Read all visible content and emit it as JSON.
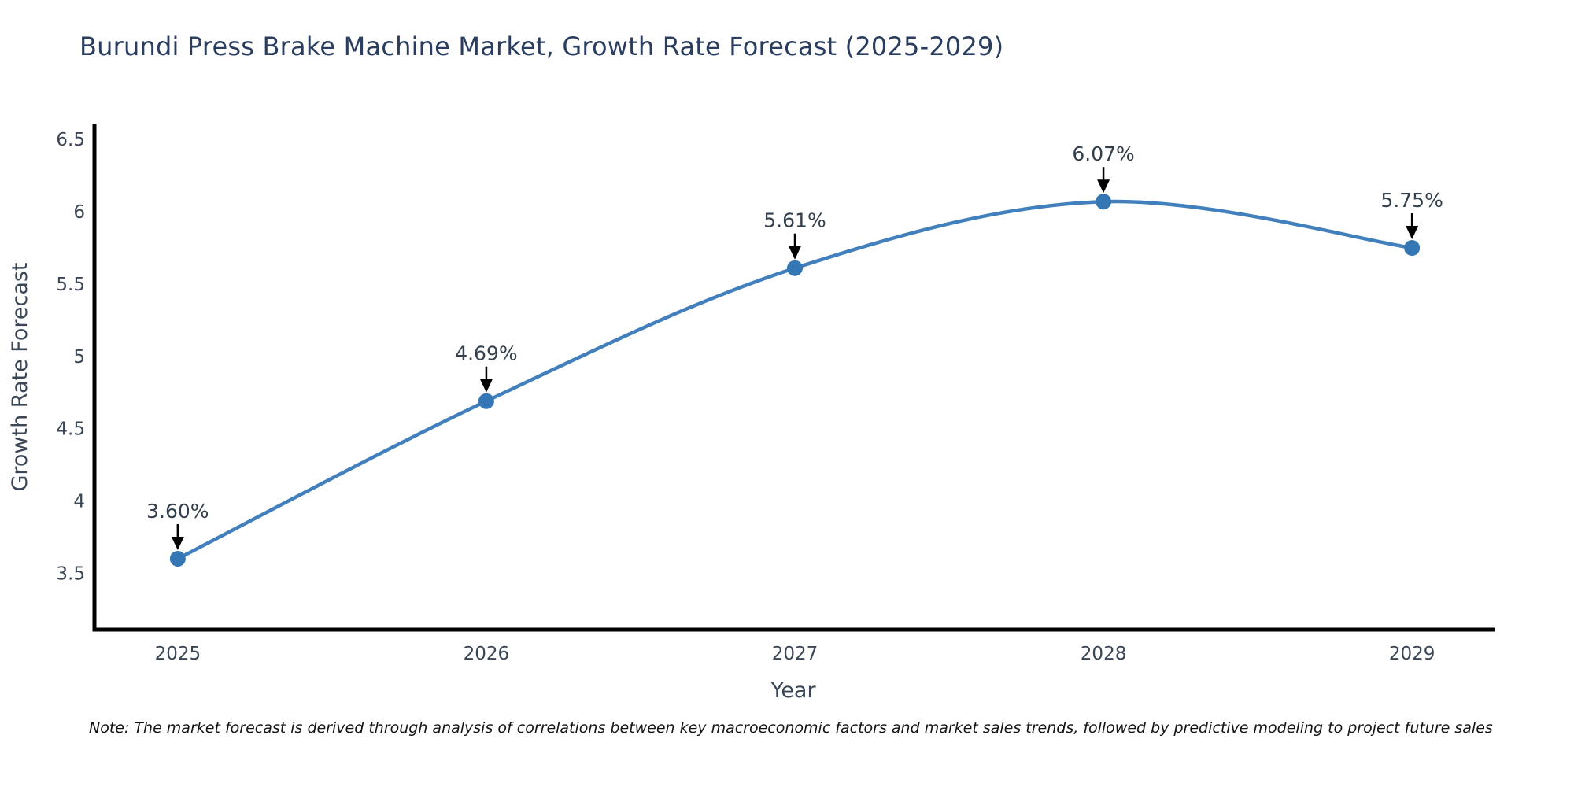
{
  "note": "Note: The market forecast is derived through analysis of correlations between key macroeconomic factors and market sales trends, followed by predictive modeling to project future sales",
  "chart_data": {
    "type": "line",
    "title": "Burundi Press Brake Machine Market, Growth Rate Forecast (2025-2029)",
    "xlabel": "Year",
    "ylabel": "Growth Rate Forecast",
    "x": [
      2025,
      2026,
      2027,
      2028,
      2029
    ],
    "series": [
      {
        "name": "Growth Rate Forecast",
        "values": [
          3.6,
          4.69,
          5.61,
          6.07,
          5.75
        ]
      }
    ],
    "point_labels": [
      "3.60%",
      "4.69%",
      "5.61%",
      "6.07%",
      "5.75%"
    ],
    "yticks": [
      3.5,
      4,
      4.5,
      5,
      5.5,
      6,
      6.5
    ],
    "xlim": [
      2024.73,
      2029.27
    ],
    "ylim": [
      3.11,
      6.61
    ],
    "grid": false,
    "legend": "none",
    "marker_size": 10,
    "colors": {
      "line": "#4180bc",
      "marker": "#3577b4",
      "axis": "#000000",
      "tick_text": "#3a4656",
      "title_text": "#2b3d5f",
      "annotation_text": "#333f4d",
      "arrow": "#000000",
      "note_text": "#141414",
      "background": "#ffffff"
    }
  }
}
